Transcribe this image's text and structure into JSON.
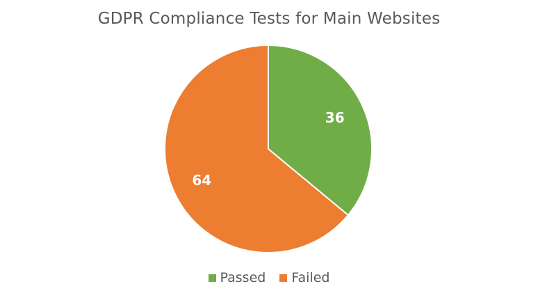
{
  "chart_data": {
    "type": "pie",
    "title": "GDPR Compliance Tests for Main Websites",
    "categories": [
      "Passed",
      "Failed"
    ],
    "values": [
      36,
      64
    ],
    "data_labels": [
      "36",
      "64"
    ],
    "colors": [
      "#70AD47",
      "#ED7D31"
    ],
    "legend_position": "bottom",
    "start_angle_deg": 0,
    "direction": "clockwise"
  }
}
